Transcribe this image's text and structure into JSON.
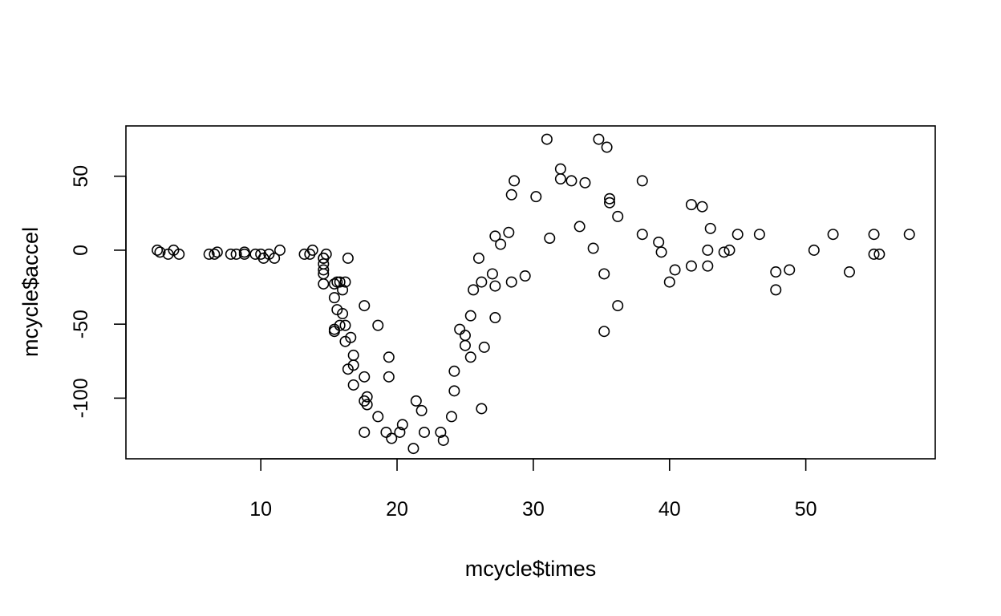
{
  "chart_data": {
    "type": "scatter",
    "title": "",
    "xlabel": "mcycle$times",
    "ylabel": "mcycle$accel",
    "xlim": [
      0.1,
      59.5
    ],
    "ylim": [
      -141,
      84
    ],
    "x_ticks": [
      10,
      20,
      30,
      40,
      50
    ],
    "x_tick_labels": [
      "10",
      "20",
      "30",
      "40",
      "50"
    ],
    "y_ticks": [
      -100,
      -50,
      0,
      50
    ],
    "y_tick_labels": [
      "-100",
      "-50",
      "0",
      "50"
    ],
    "grid": false,
    "legend": "none",
    "marker": "open-circle",
    "marker_color": "#000000",
    "points": [
      [
        2.4,
        0.0
      ],
      [
        2.6,
        -1.3
      ],
      [
        3.2,
        -2.7
      ],
      [
        3.6,
        0.0
      ],
      [
        4.0,
        -2.7
      ],
      [
        6.2,
        -2.7
      ],
      [
        6.6,
        -2.7
      ],
      [
        6.8,
        -1.3
      ],
      [
        7.8,
        -2.7
      ],
      [
        8.2,
        -2.7
      ],
      [
        8.8,
        -1.3
      ],
      [
        8.8,
        -2.7
      ],
      [
        9.6,
        -2.7
      ],
      [
        10.0,
        -2.7
      ],
      [
        10.2,
        -5.4
      ],
      [
        10.6,
        -2.7
      ],
      [
        11.0,
        -5.4
      ],
      [
        11.4,
        0.0
      ],
      [
        13.2,
        -2.7
      ],
      [
        13.6,
        -2.7
      ],
      [
        13.8,
        0.0
      ],
      [
        14.6,
        -13.3
      ],
      [
        14.6,
        -5.4
      ],
      [
        14.6,
        -5.4
      ],
      [
        14.6,
        -9.3
      ],
      [
        14.6,
        -16.0
      ],
      [
        14.6,
        -22.8
      ],
      [
        14.8,
        -2.7
      ],
      [
        15.4,
        -22.8
      ],
      [
        15.4,
        -32.1
      ],
      [
        15.4,
        -53.5
      ],
      [
        15.4,
        -54.9
      ],
      [
        15.6,
        -40.2
      ],
      [
        15.6,
        -21.5
      ],
      [
        15.8,
        -21.5
      ],
      [
        15.8,
        -50.8
      ],
      [
        16.0,
        -42.9
      ],
      [
        16.0,
        -26.8
      ],
      [
        16.2,
        -21.5
      ],
      [
        16.2,
        -50.8
      ],
      [
        16.2,
        -61.7
      ],
      [
        16.4,
        -5.4
      ],
      [
        16.4,
        -80.4
      ],
      [
        16.6,
        -59.0
      ],
      [
        16.8,
        -71.0
      ],
      [
        16.8,
        -91.1
      ],
      [
        16.8,
        -77.7
      ],
      [
        17.6,
        -37.5
      ],
      [
        17.6,
        -85.6
      ],
      [
        17.6,
        -123.1
      ],
      [
        17.6,
        -101.9
      ],
      [
        17.8,
        -99.1
      ],
      [
        17.8,
        -104.4
      ],
      [
        18.6,
        -112.5
      ],
      [
        18.6,
        -50.8
      ],
      [
        19.2,
        -123.1
      ],
      [
        19.4,
        -85.6
      ],
      [
        19.4,
        -72.3
      ],
      [
        19.6,
        -127.2
      ],
      [
        20.2,
        -123.1
      ],
      [
        20.4,
        -117.9
      ],
      [
        21.2,
        -134.0
      ],
      [
        21.4,
        -101.9
      ],
      [
        21.8,
        -108.4
      ],
      [
        22.0,
        -123.1
      ],
      [
        23.2,
        -123.1
      ],
      [
        23.4,
        -128.5
      ],
      [
        24.0,
        -112.5
      ],
      [
        24.2,
        -95.1
      ],
      [
        24.2,
        -81.8
      ],
      [
        24.6,
        -53.5
      ],
      [
        25.0,
        -64.4
      ],
      [
        25.0,
        -57.6
      ],
      [
        25.4,
        -72.3
      ],
      [
        25.4,
        -44.3
      ],
      [
        25.6,
        -26.8
      ],
      [
        26.0,
        -5.4
      ],
      [
        26.2,
        -107.1
      ],
      [
        26.2,
        -21.5
      ],
      [
        26.4,
        -65.6
      ],
      [
        27.0,
        -16.0
      ],
      [
        27.2,
        -45.6
      ],
      [
        27.2,
        -24.2
      ],
      [
        27.2,
        9.5
      ],
      [
        27.6,
        4.0
      ],
      [
        28.2,
        12.0
      ],
      [
        28.4,
        -21.5
      ],
      [
        28.4,
        37.5
      ],
      [
        28.6,
        46.9
      ],
      [
        29.4,
        -17.4
      ],
      [
        30.2,
        36.2
      ],
      [
        31.0,
        75.0
      ],
      [
        31.2,
        8.1
      ],
      [
        32.0,
        54.9
      ],
      [
        32.0,
        48.2
      ],
      [
        32.8,
        46.9
      ],
      [
        33.4,
        16.0
      ],
      [
        33.8,
        45.6
      ],
      [
        34.4,
        1.3
      ],
      [
        34.8,
        75.0
      ],
      [
        35.2,
        -16.0
      ],
      [
        35.2,
        -54.9
      ],
      [
        35.4,
        69.6
      ],
      [
        35.6,
        34.8
      ],
      [
        35.6,
        32.1
      ],
      [
        36.2,
        -37.5
      ],
      [
        36.2,
        22.8
      ],
      [
        38.0,
        46.9
      ],
      [
        38.0,
        10.7
      ],
      [
        39.2,
        5.4
      ],
      [
        39.4,
        -1.3
      ],
      [
        40.0,
        -21.5
      ],
      [
        40.4,
        -13.3
      ],
      [
        41.6,
        30.8
      ],
      [
        41.6,
        -10.7
      ],
      [
        42.4,
        29.4
      ],
      [
        42.8,
        0.0
      ],
      [
        42.8,
        -10.7
      ],
      [
        43.0,
        14.7
      ],
      [
        44.0,
        -1.3
      ],
      [
        44.4,
        0.0
      ],
      [
        45.0,
        10.7
      ],
      [
        46.6,
        10.7
      ],
      [
        47.8,
        -26.8
      ],
      [
        47.8,
        -14.7
      ],
      [
        48.8,
        -13.3
      ],
      [
        50.6,
        0.0
      ],
      [
        52.0,
        10.7
      ],
      [
        53.2,
        -14.7
      ],
      [
        55.0,
        -2.7
      ],
      [
        55.0,
        10.7
      ],
      [
        55.4,
        -2.7
      ],
      [
        57.6,
        10.7
      ]
    ]
  }
}
